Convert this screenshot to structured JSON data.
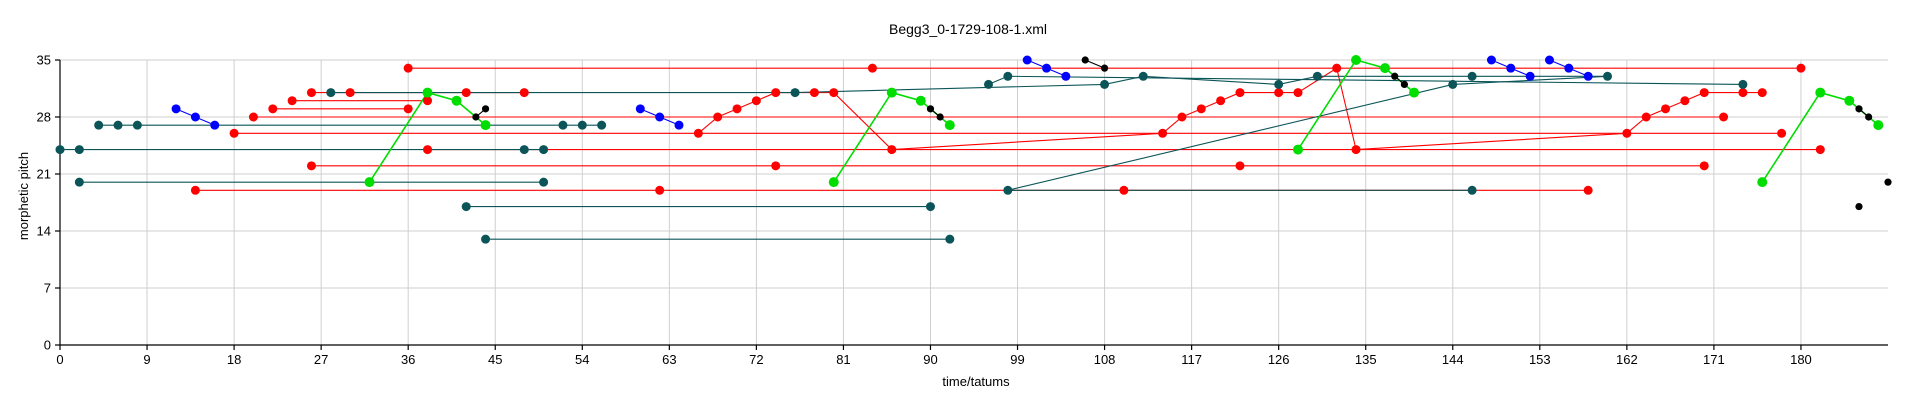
{
  "chart_data": {
    "type": "scatter",
    "title": "Begg3_0-1729-108-1.xml",
    "xlabel": "time/tatums",
    "ylabel": "morphetic pitch",
    "xlim": [
      0,
      189
    ],
    "ylim": [
      0,
      35
    ],
    "xticks": [
      0,
      9,
      18,
      27,
      36,
      45,
      54,
      63,
      72,
      81,
      90,
      99,
      108,
      117,
      126,
      135,
      144,
      153,
      162,
      171,
      180
    ],
    "yticks": [
      0,
      7,
      14,
      21,
      28,
      35
    ],
    "grid": true,
    "colors": {
      "red": "#ff0000",
      "teal": "#0b5558",
      "green": "#00dd00",
      "blue": "#0000ff",
      "black": "#000000"
    },
    "patterns": [
      {
        "color": "red",
        "segments": [
          [
            [
              36,
              34
            ],
            [
              84,
              34
            ],
            [
              180,
              34
            ]
          ]
        ]
      },
      {
        "color": "red",
        "segments": [
          [
            [
              26,
              31
            ],
            [
              30,
              31
            ],
            [
              38,
              31
            ],
            [
              42,
              31
            ],
            [
              48,
              31
            ]
          ]
        ]
      },
      {
        "color": "red",
        "segments": [
          [
            [
              24,
              30
            ],
            [
              38,
              30
            ]
          ]
        ]
      },
      {
        "color": "red",
        "segments": [
          [
            [
              22,
              29
            ],
            [
              36,
              29
            ]
          ]
        ]
      },
      {
        "color": "red",
        "segments": [
          [
            [
              20,
              28
            ],
            [
              172,
              28
            ]
          ]
        ]
      },
      {
        "color": "red",
        "segments": [
          [
            [
              18,
              26
            ],
            [
              178,
              26
            ]
          ]
        ]
      },
      {
        "color": "red",
        "segments": [
          [
            [
              38,
              24
            ],
            [
              182,
              24
            ]
          ]
        ]
      },
      {
        "color": "red",
        "segments": [
          [
            [
              26,
              22
            ],
            [
              74,
              22
            ],
            [
              122,
              22
            ],
            [
              170,
              22
            ]
          ]
        ]
      },
      {
        "color": "red",
        "segments": [
          [
            [
              14,
              19
            ],
            [
              62,
              19
            ],
            [
              110,
              19
            ],
            [
              158,
              19
            ]
          ]
        ]
      },
      {
        "color": "red",
        "segments": [
          [
            [
              66,
              26
            ],
            [
              68,
              28
            ],
            [
              70,
              29
            ],
            [
              72,
              30
            ],
            [
              74,
              31
            ],
            [
              78,
              31
            ],
            [
              80,
              31
            ],
            [
              86,
              24
            ],
            [
              114,
              26
            ],
            [
              116,
              28
            ],
            [
              118,
              29
            ],
            [
              120,
              30
            ],
            [
              122,
              31
            ],
            [
              126,
              31
            ],
            [
              128,
              31
            ],
            [
              132,
              34
            ],
            [
              134,
              24
            ],
            [
              162,
              26
            ],
            [
              164,
              28
            ],
            [
              166,
              29
            ],
            [
              168,
              30
            ],
            [
              170,
              31
            ],
            [
              174,
              31
            ],
            [
              176,
              31
            ]
          ]
        ]
      },
      {
        "color": "teal",
        "segments": [
          [
            [
              0,
              24
            ],
            [
              2,
              24
            ],
            [
              48,
              24
            ],
            [
              50,
              24
            ]
          ]
        ]
      },
      {
        "color": "teal",
        "segments": [
          [
            [
              4,
              27
            ],
            [
              6,
              27
            ],
            [
              8,
              27
            ],
            [
              52,
              27
            ],
            [
              54,
              27
            ],
            [
              56,
              27
            ]
          ]
        ]
      },
      {
        "color": "teal",
        "segments": [
          [
            [
              2,
              20
            ],
            [
              50,
              20
            ]
          ]
        ]
      },
      {
        "color": "teal",
        "segments": [
          [
            [
              42,
              17
            ],
            [
              90,
              17
            ]
          ]
        ]
      },
      {
        "color": "teal",
        "segments": [
          [
            [
              44,
              13
            ],
            [
              92,
              13
            ]
          ]
        ]
      },
      {
        "color": "teal",
        "segments": [
          [
            [
              96,
              32
            ],
            [
              98,
              33
            ],
            [
              174,
              32
            ]
          ]
        ]
      },
      {
        "color": "teal",
        "segments": [
          [
            [
              28,
              31
            ],
            [
              76,
              31
            ],
            [
              108,
              32
            ],
            [
              112,
              33
            ],
            [
              126,
              32
            ],
            [
              130,
              33
            ],
            [
              146,
              33
            ],
            [
              160,
              33
            ],
            [
              144,
              32
            ],
            [
              98,
              19
            ],
            [
              146,
              19
            ]
          ]
        ]
      },
      {
        "color": "green",
        "segments": [
          [
            [
              32,
              20
            ],
            [
              38,
              31
            ],
            [
              41,
              30
            ],
            [
              44,
              27
            ]
          ],
          [
            [
              80,
              20
            ],
            [
              86,
              31
            ],
            [
              89,
              30
            ],
            [
              92,
              27
            ]
          ],
          [
            [
              128,
              24
            ],
            [
              134,
              35
            ],
            [
              137,
              34
            ],
            [
              140,
              31
            ]
          ],
          [
            [
              176,
              20
            ],
            [
              182,
              31
            ],
            [
              185,
              30
            ],
            [
              188,
              27
            ]
          ]
        ]
      },
      {
        "color": "blue",
        "segments": [
          [
            [
              12,
              29
            ],
            [
              14,
              28
            ],
            [
              16,
              27
            ]
          ],
          [
            [
              60,
              29
            ],
            [
              62,
              28
            ],
            [
              64,
              27
            ]
          ],
          [
            [
              100,
              35
            ],
            [
              102,
              34
            ],
            [
              104,
              33
            ]
          ],
          [
            [
              148,
              35
            ],
            [
              150,
              34
            ],
            [
              152,
              33
            ]
          ],
          [
            [
              154,
              35
            ],
            [
              156,
              34
            ],
            [
              158,
              33
            ]
          ]
        ]
      },
      {
        "color": "black",
        "segments": [
          [
            [
              43,
              28
            ],
            [
              44,
              29
            ]
          ],
          [
            [
              90,
              29
            ],
            [
              91,
              28
            ]
          ],
          [
            [
              106,
              35
            ],
            [
              108,
              34
            ]
          ],
          [
            [
              138,
              33
            ],
            [
              139,
              32
            ]
          ],
          [
            [
              186,
              29
            ],
            [
              187,
              28
            ]
          ],
          [
            [
              186,
              17
            ]
          ],
          [
            [
              189,
              20
            ]
          ]
        ]
      }
    ]
  }
}
